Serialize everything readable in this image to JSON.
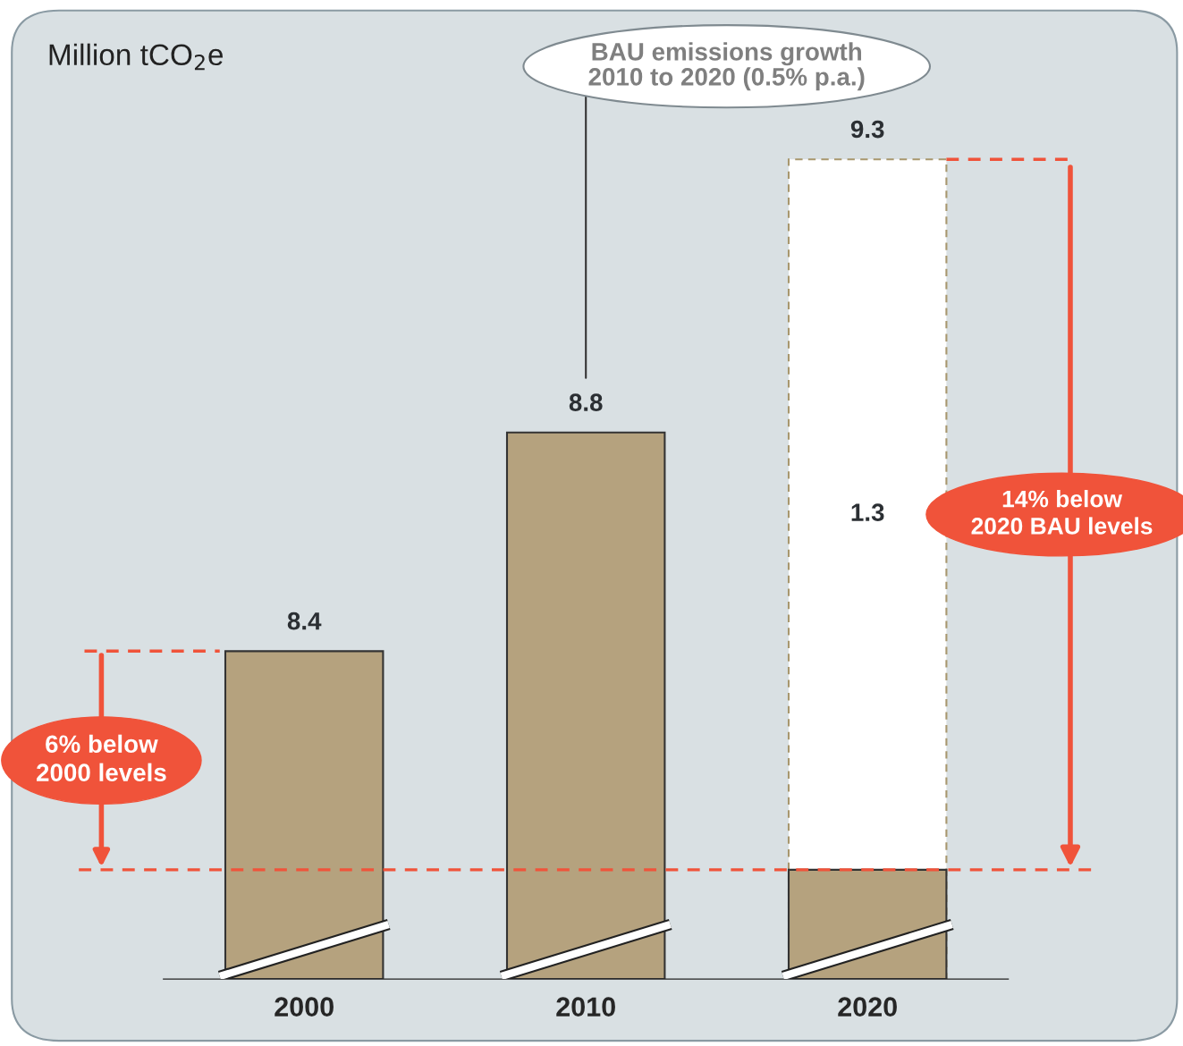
{
  "chart_data": {
    "type": "bar",
    "ylabel": "Million tCO$_{2}$e",
    "categories": [
      "2000",
      "2010",
      "2020"
    ],
    "series": [
      {
        "color": "#b5a27e",
        "values": [
          8.4,
          8.8,
          8.0
        ],
        "value_labels": [
          "8.4",
          "8.8",
          null
        ]
      },
      {
        "color": "#ffffff",
        "values": [
          null,
          null,
          9.3
        ],
        "value_labels": [
          null,
          null,
          "9.3"
        ],
        "line_style": "dashed"
      }
    ],
    "ylim": [
      7.8,
      9.58
    ],
    "tick_labels": "x",
    "ref_lines": [
      {
        "axis": "y",
        "value": 8.0,
        "color": "#f0533a",
        "line_style": "dashed"
      },
      {
        "axis": "y",
        "value": 8.4,
        "color": "#f0533a",
        "line_style": "dashed"
      },
      {
        "axis": "y",
        "value": 9.3,
        "color": "#f0533a",
        "line_style": "dashed"
      }
    ],
    "annotations": [
      "BAU emissions growth\n2010 to 2020 (0.5% p.a.)",
      "6% below\n2000 levels",
      "14% below\n2020 BAU levels",
      "1.3"
    ]
  }
}
